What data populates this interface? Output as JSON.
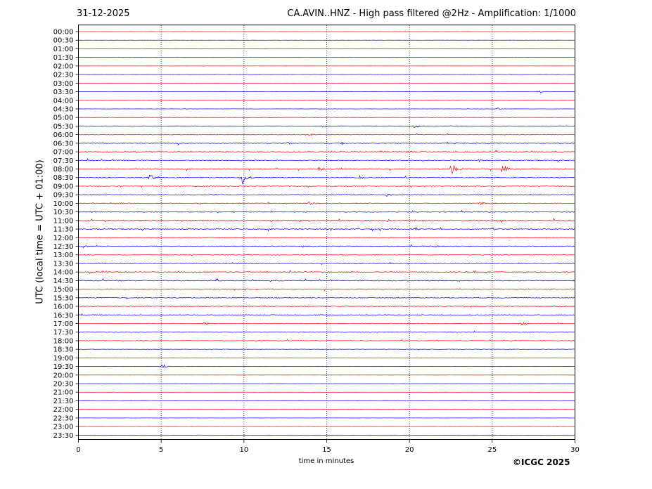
{
  "header": {
    "date": "31-12-2025",
    "title": "CA.AVIN..HNZ - High pass filtered @2Hz - Amplification: 1/1000"
  },
  "footer": {
    "copyright": "©ICGC 2025"
  },
  "chart_data": {
    "type": "line",
    "title": "CA.AVIN..HNZ - High pass filtered @2Hz - Amplification: 1/1000",
    "xlabel": "time in minutes",
    "ylabel": "UTC (local time = UTC + 01:00)",
    "xlim": [
      0,
      30
    ],
    "x_ticks": [
      0,
      5,
      10,
      15,
      20,
      25,
      30
    ],
    "grid": "vertical dotted lines at 5-minute intervals",
    "trace_colors": [
      "#ff0000",
      "#0000ff"
    ],
    "rows": [
      "00:00",
      "00:30",
      "01:00",
      "01:30",
      "02:00",
      "02:30",
      "03:00",
      "03:30",
      "04:00",
      "04:30",
      "05:00",
      "05:30",
      "06:00",
      "06:30",
      "07:00",
      "07:30",
      "08:00",
      "08:30",
      "09:00",
      "09:30",
      "10:00",
      "10:30",
      "11:00",
      "11:30",
      "12:00",
      "12:30",
      "13:00",
      "13:30",
      "14:00",
      "14:30",
      "15:00",
      "15:30",
      "16:00",
      "16:30",
      "17:00",
      "17:30",
      "18:00",
      "18:30",
      "19:00",
      "19:30",
      "20:00",
      "20:30",
      "21:00",
      "21:30",
      "22:00",
      "22:30",
      "23:00",
      "23:30"
    ],
    "noise_level": [
      0.1,
      0.1,
      0.1,
      0.1,
      0.1,
      0.1,
      0.1,
      0.15,
      0.15,
      0.2,
      0.3,
      0.4,
      0.45,
      0.5,
      0.5,
      0.6,
      0.6,
      0.55,
      0.5,
      0.5,
      0.55,
      0.6,
      0.7,
      0.65,
      0.5,
      0.55,
      0.5,
      0.55,
      0.6,
      0.65,
      0.6,
      0.5,
      0.5,
      0.45,
      0.4,
      0.4,
      0.35,
      0.3,
      0.25,
      0.2,
      0.1,
      0.1,
      0.1,
      0.1,
      0.1,
      0.1,
      0.1,
      0.1
    ],
    "events": [
      {
        "row": "03:30",
        "minute": 27.9,
        "amplitude": 2
      },
      {
        "row": "04:30",
        "minute": 25.3,
        "amplitude": 1.5
      },
      {
        "row": "05:30",
        "minute": 20.3,
        "amplitude": 3
      },
      {
        "row": "06:00",
        "minute": 13.9,
        "amplitude": 3
      },
      {
        "row": "06:30",
        "minute": 12.6,
        "amplitude": 2
      },
      {
        "row": "06:30",
        "minute": 15.9,
        "amplitude": 2
      },
      {
        "row": "07:00",
        "minute": 19.9,
        "amplitude": 2
      },
      {
        "row": "07:30",
        "minute": 24.2,
        "amplitude": 1.5
      },
      {
        "row": "08:00",
        "minute": 14.5,
        "amplitude": 3
      },
      {
        "row": "08:00",
        "minute": 22.5,
        "amplitude": 10
      },
      {
        "row": "08:00",
        "minute": 25.6,
        "amplitude": 10
      },
      {
        "row": "08:30",
        "minute": 4.3,
        "amplitude": 6
      },
      {
        "row": "08:30",
        "minute": 9.9,
        "amplitude": 10
      },
      {
        "row": "08:30",
        "minute": 17.0,
        "amplitude": 2.5
      },
      {
        "row": "09:00",
        "minute": 7.0,
        "amplitude": 2
      },
      {
        "row": "09:00",
        "minute": 13.9,
        "amplitude": 2
      },
      {
        "row": "09:30",
        "minute": 8.0,
        "amplitude": 1.5
      },
      {
        "row": "09:30",
        "minute": 18.6,
        "amplitude": 2.5
      },
      {
        "row": "10:00",
        "minute": 13.9,
        "amplitude": 2.5
      },
      {
        "row": "10:00",
        "minute": 24.3,
        "amplitude": 3
      },
      {
        "row": "10:30",
        "minute": 0.7,
        "amplitude": 2.5
      },
      {
        "row": "11:00",
        "minute": 18.6,
        "amplitude": 2.5
      },
      {
        "row": "11:00",
        "minute": 20.0,
        "amplitude": 2.5
      },
      {
        "row": "11:30",
        "minute": 20.3,
        "amplitude": 2.5
      },
      {
        "row": "11:30",
        "minute": 25.0,
        "amplitude": 2
      },
      {
        "row": "12:30",
        "minute": 0.2,
        "amplitude": 3
      },
      {
        "row": "12:30",
        "minute": 21.5,
        "amplitude": 3
      },
      {
        "row": "13:00",
        "minute": 6.8,
        "amplitude": 2
      },
      {
        "row": "14:00",
        "minute": 0.7,
        "amplitude": 2.5
      },
      {
        "row": "14:00",
        "minute": 1.5,
        "amplitude": 2
      },
      {
        "row": "17:00",
        "minute": 7.6,
        "amplitude": 2.5
      },
      {
        "row": "17:00",
        "minute": 26.8,
        "amplitude": 3
      },
      {
        "row": "19:30",
        "minute": 5.0,
        "amplitude": 4
      }
    ]
  }
}
